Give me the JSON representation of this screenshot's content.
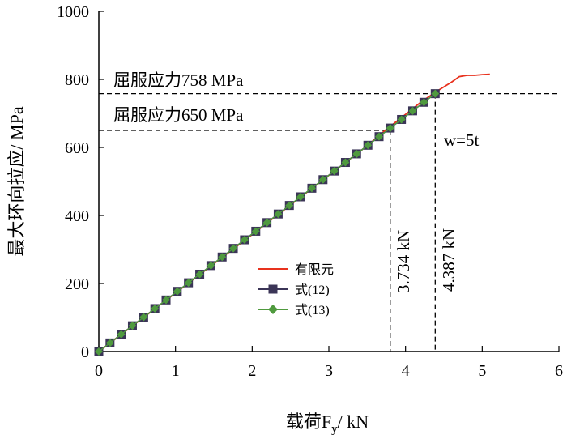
{
  "chart_data": {
    "type": "line",
    "title": "",
    "xlabel": {
      "main": "载荷F",
      "sub": "y",
      "unit": "/ kN"
    },
    "ylabel": "最大环向拉应/ MPa",
    "xlim": [
      0,
      6
    ],
    "ylim": [
      0,
      1000
    ],
    "xticks": [
      "0",
      "1",
      "2",
      "3",
      "4",
      "5",
      "6"
    ],
    "yticks": [
      "0",
      "200",
      "400",
      "600",
      "800",
      "1000"
    ],
    "grid": false,
    "legend_position": "center-left",
    "series": [
      {
        "name": "有限元",
        "color": "#e8321e",
        "style": "line",
        "x": [
          0,
          0.5,
          1.0,
          1.5,
          2.0,
          2.5,
          3.0,
          3.5,
          3.734,
          4.0,
          4.2,
          4.387,
          4.5,
          4.6,
          4.7,
          4.8,
          4.9,
          5.0,
          5.1
        ],
        "y": [
          0,
          86,
          172,
          258,
          344,
          431,
          518,
          605,
          650,
          697,
          733,
          762,
          778,
          792,
          808,
          812,
          812,
          814,
          815
        ]
      },
      {
        "name": "式(12)",
        "color": "#3b3557",
        "marker": "square",
        "x": [
          0,
          0.146,
          0.292,
          0.438,
          0.585,
          0.731,
          0.877,
          1.023,
          1.169,
          1.316,
          1.462,
          1.608,
          1.754,
          1.9,
          2.047,
          2.193,
          2.339,
          2.485,
          2.631,
          2.778,
          2.924,
          3.07,
          3.216,
          3.362,
          3.509,
          3.655,
          3.801,
          3.947,
          4.093,
          4.24,
          4.387
        ],
        "y": [
          0,
          25.3,
          50.5,
          75.8,
          101.1,
          126.3,
          151.6,
          176.9,
          202.1,
          227.4,
          252.7,
          277.9,
          303.2,
          328.5,
          353.7,
          379,
          404.3,
          429.5,
          454.8,
          480.1,
          505.3,
          530.6,
          555.9,
          581.1,
          606.4,
          631.7,
          656.9,
          682.2,
          707.5,
          732.7,
          758
        ]
      },
      {
        "name": "式(13)",
        "color": "#4f9a3e",
        "marker": "diamond",
        "x": [
          0,
          0.146,
          0.292,
          0.438,
          0.585,
          0.731,
          0.877,
          1.023,
          1.169,
          1.316,
          1.462,
          1.608,
          1.754,
          1.9,
          2.047,
          2.193,
          2.339,
          2.485,
          2.631,
          2.778,
          2.924,
          3.07,
          3.216,
          3.362,
          3.509,
          3.655,
          3.801,
          3.947,
          4.093,
          4.24,
          4.387
        ],
        "y": [
          0,
          25.3,
          50.5,
          75.8,
          101.1,
          126.3,
          151.6,
          176.9,
          202.1,
          227.4,
          252.7,
          277.9,
          303.2,
          328.5,
          353.7,
          379,
          404.3,
          429.5,
          454.8,
          480.1,
          505.3,
          530.6,
          555.9,
          581.1,
          606.4,
          631.7,
          656.9,
          682.2,
          707.5,
          732.7,
          758
        ]
      }
    ],
    "annotations": {
      "yield_758": {
        "label": "屈服应力758 MPa",
        "y": 758,
        "x_end": 4.387
      },
      "yield_650": {
        "label": "屈服应力650 MPa",
        "y": 650,
        "x_end": 3.8
      },
      "load_3734": {
        "label": "3.734 kN",
        "x": 3.8
      },
      "load_4387": {
        "label": "4.387 kN",
        "x": 4.387
      },
      "width_note": "w=5t"
    }
  }
}
